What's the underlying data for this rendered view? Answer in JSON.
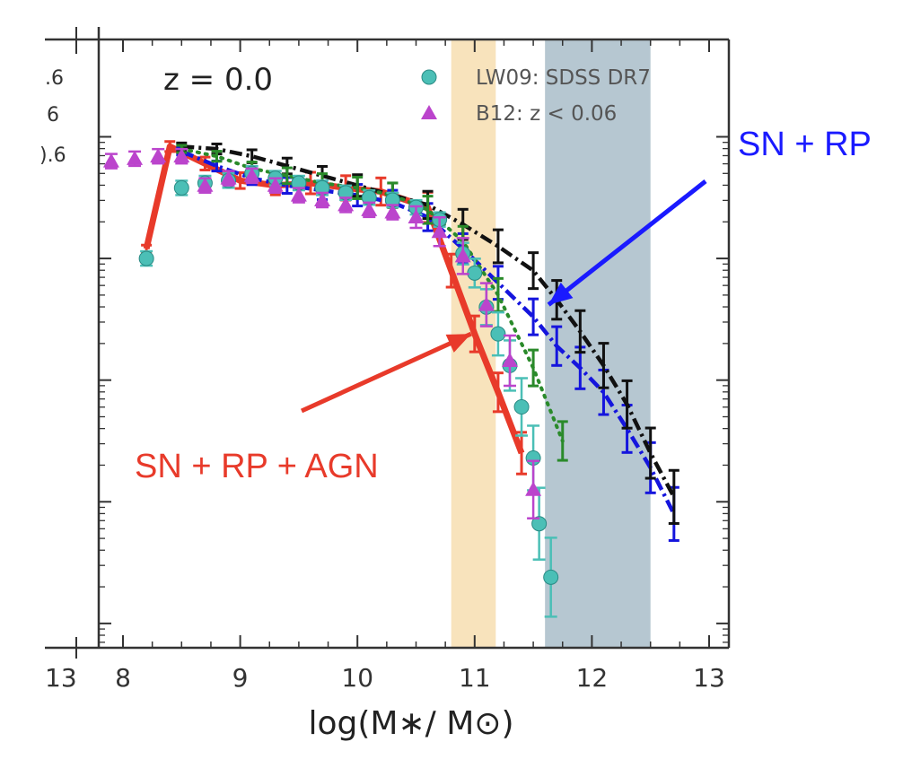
{
  "chart_data": {
    "type": "line",
    "redshift_label": "z = 0.0",
    "xlabel": "log(M∗/ M⊙)",
    "ylabel": "",
    "xlim": [
      7.8,
      13.1
    ],
    "ylim": [
      -6.2,
      -1.2
    ],
    "x_ticks": [
      8,
      9,
      10,
      11,
      12,
      13
    ],
    "x_tick_labels": [
      "8",
      "9",
      "10",
      "11",
      "12",
      "13"
    ],
    "left_edge_x_label": "13",
    "left_edge_y_fragments": [
      ".6",
      "6",
      ").6"
    ],
    "grid": false,
    "legend_position": "top-right",
    "legend": [
      {
        "label": "LW09: SDSS DR7",
        "marker": "circle",
        "color": "#4bbfb6"
      },
      {
        "label": "B12: z < 0.06",
        "marker": "triangle",
        "color": "#bb44cc"
      }
    ],
    "shaded_regions": [
      {
        "x0": 10.8,
        "x1": 11.18,
        "color": "#f7deb0"
      },
      {
        "x0": 11.6,
        "x1": 12.5,
        "color": "#a9bdc9"
      }
    ],
    "annotations": [
      {
        "text": "SN + RP",
        "color": "#1a1aff",
        "arrow_to": [
          11.6,
          -3.38
        ]
      },
      {
        "text": "SN + RP + AGN",
        "color": "#e83a2a",
        "arrow_to": [
          11.0,
          -3.62
        ]
      }
    ],
    "series": [
      {
        "name": "SN + RP + AGN",
        "color": "#e83a2a",
        "style": "solid",
        "x": [
          8.2,
          8.4,
          8.7,
          9.0,
          9.3,
          9.6,
          9.9,
          10.2,
          10.6,
          10.8,
          11.0,
          11.2,
          11.4
        ],
        "y": [
          -2.92,
          -2.08,
          -2.22,
          -2.36,
          -2.4,
          -2.38,
          -2.42,
          -2.45,
          -2.58,
          -3.1,
          -3.62,
          -4.1,
          -4.6
        ]
      },
      {
        "name": "",
        "color": "#1515dd",
        "style": "dashdot",
        "x": [
          8.5,
          8.8,
          9.1,
          9.4,
          9.7,
          10.0,
          10.3,
          10.6,
          10.9,
          11.2,
          11.5,
          11.7,
          11.9,
          12.1,
          12.3,
          12.5,
          12.7
        ],
        "y": [
          -2.12,
          -2.24,
          -2.34,
          -2.4,
          -2.44,
          -2.48,
          -2.54,
          -2.66,
          -2.92,
          -3.2,
          -3.48,
          -3.72,
          -3.9,
          -4.1,
          -4.4,
          -4.72,
          -5.1
        ]
      },
      {
        "name": "",
        "color": "#111111",
        "style": "dashdot",
        "x": [
          8.5,
          8.8,
          9.1,
          9.4,
          9.7,
          10.0,
          10.3,
          10.6,
          10.9,
          11.2,
          11.5,
          11.7,
          11.9,
          12.1,
          12.3,
          12.5,
          12.7
        ],
        "y": [
          -2.08,
          -2.1,
          -2.16,
          -2.24,
          -2.32,
          -2.4,
          -2.48,
          -2.56,
          -2.72,
          -2.9,
          -3.1,
          -3.34,
          -3.6,
          -3.88,
          -4.2,
          -4.6,
          -4.96
        ]
      },
      {
        "name": "",
        "color": "#2a8a2a",
        "style": "dotted",
        "x": [
          8.5,
          8.8,
          9.1,
          9.4,
          9.7,
          10.0,
          10.3,
          10.6,
          10.9,
          11.2,
          11.5,
          11.75
        ],
        "y": [
          -2.1,
          -2.16,
          -2.26,
          -2.32,
          -2.38,
          -2.42,
          -2.48,
          -2.6,
          -2.86,
          -3.3,
          -3.9,
          -4.5
        ]
      },
      {
        "name": "LW09: SDSS DR7",
        "color": "#4bbfb6",
        "style": "markers",
        "marker": "circle",
        "x": [
          8.2,
          8.5,
          8.7,
          8.9,
          9.1,
          9.3,
          9.5,
          9.7,
          9.9,
          10.1,
          10.3,
          10.5,
          10.7,
          10.9,
          11.0,
          11.1,
          11.2,
          11.3,
          11.4,
          11.5,
          11.55,
          11.65
        ],
        "y": [
          -3.0,
          -2.42,
          -2.38,
          -2.36,
          -2.3,
          -2.34,
          -2.38,
          -2.42,
          -2.46,
          -2.5,
          -2.52,
          -2.58,
          -2.68,
          -2.96,
          -3.12,
          -3.4,
          -3.62,
          -3.88,
          -4.22,
          -4.64,
          -5.18,
          -5.62
        ]
      },
      {
        "name": "B12: z < 0.06",
        "color": "#bb44cc",
        "style": "markers",
        "marker": "triangle",
        "x": [
          7.9,
          8.1,
          8.3,
          8.5,
          8.7,
          8.9,
          9.1,
          9.3,
          9.5,
          9.7,
          9.9,
          10.1,
          10.3,
          10.5,
          10.7,
          10.9,
          11.1,
          11.3,
          11.5
        ],
        "y": [
          -2.2,
          -2.18,
          -2.16,
          -2.16,
          -2.4,
          -2.34,
          -2.32,
          -2.4,
          -2.48,
          -2.52,
          -2.56,
          -2.6,
          -2.62,
          -2.66,
          -2.78,
          -2.98,
          -3.38,
          -3.84,
          -4.9
        ]
      }
    ]
  }
}
